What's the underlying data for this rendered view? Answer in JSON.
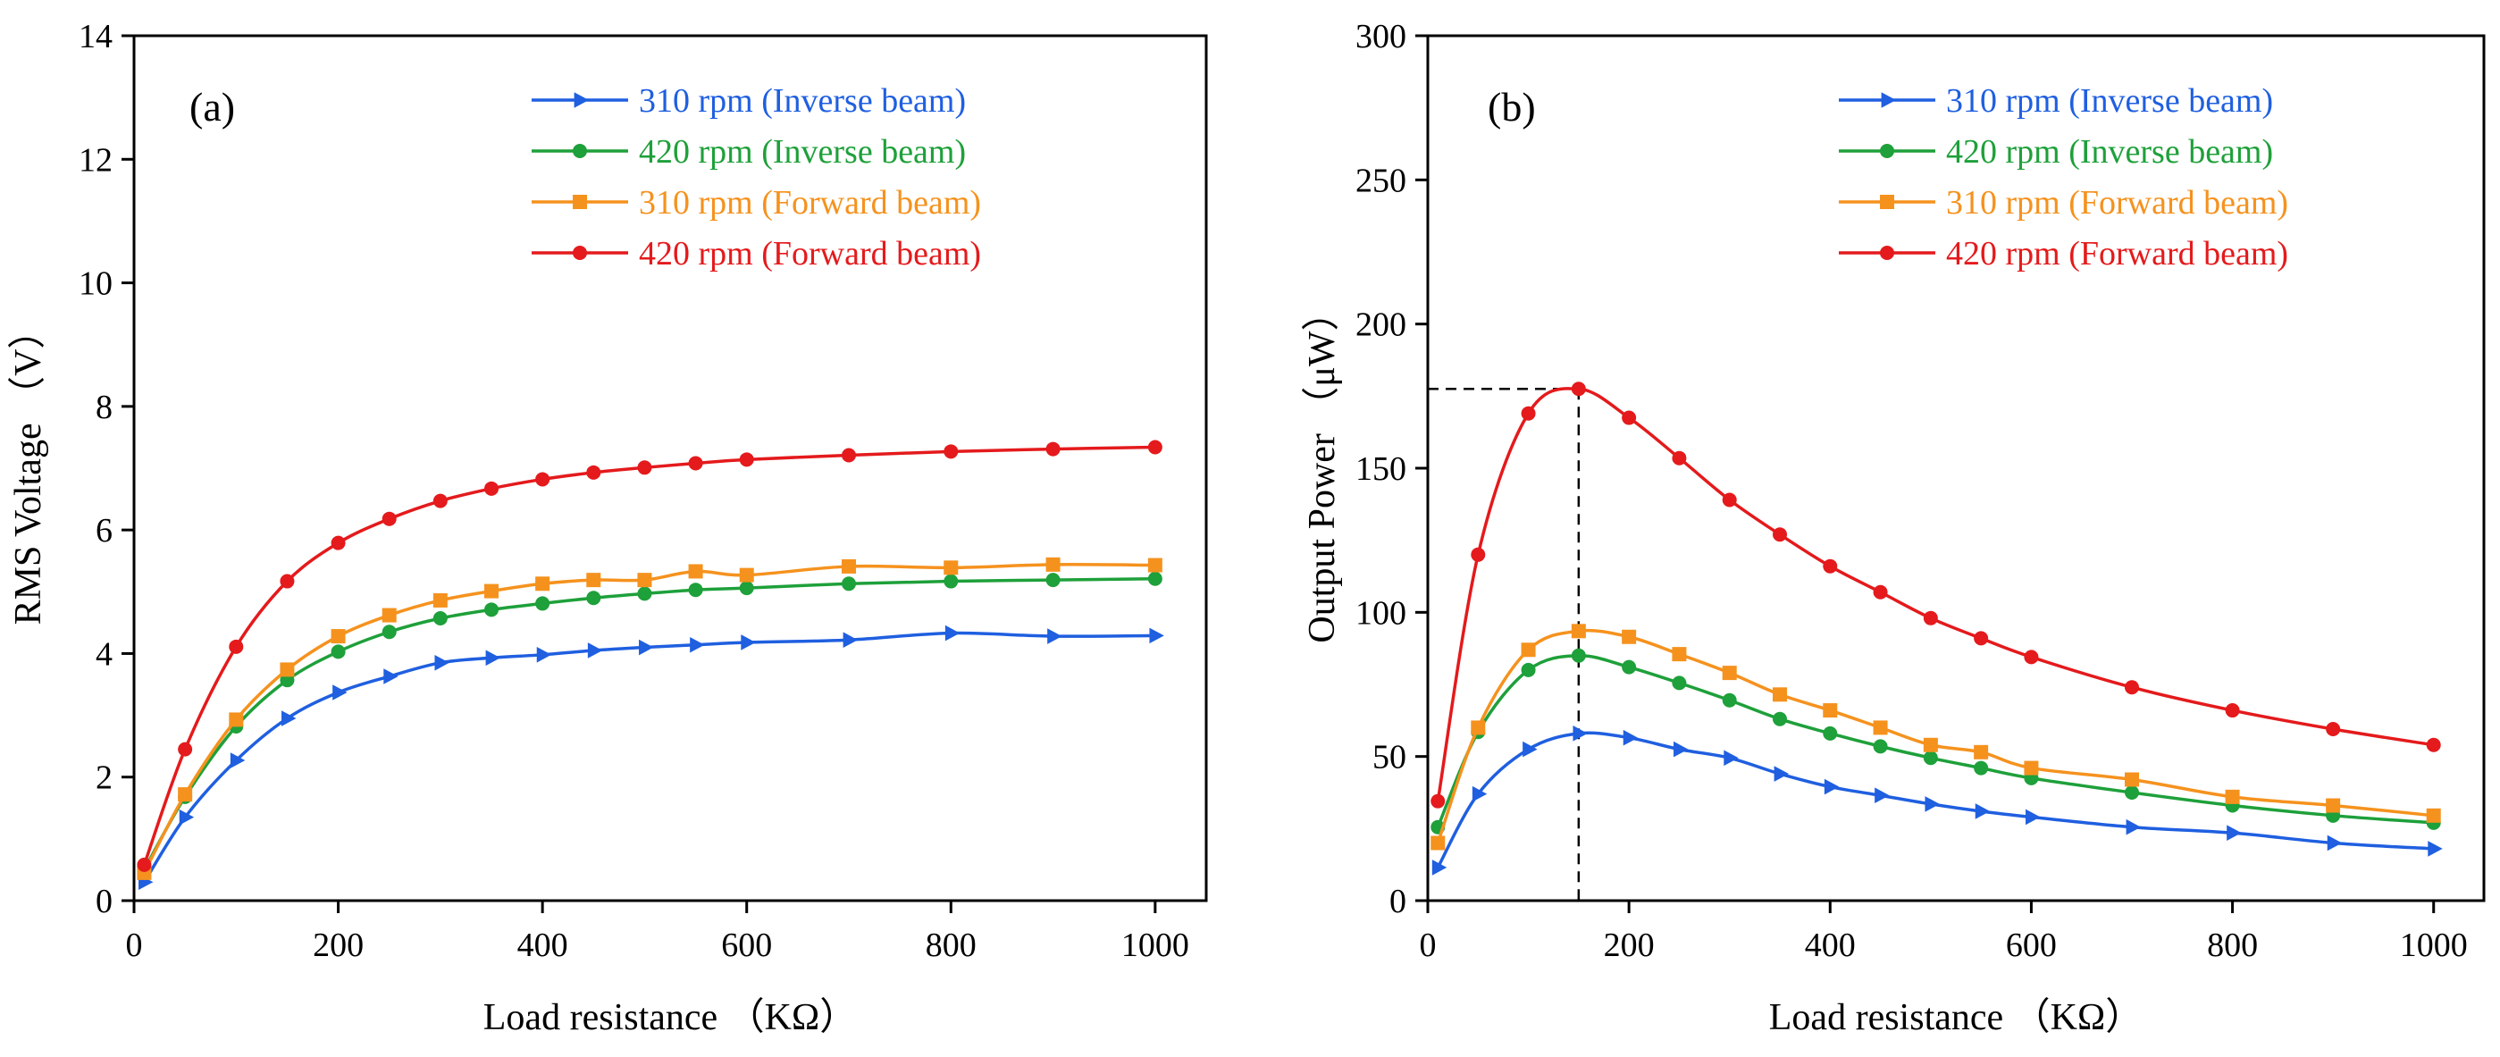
{
  "chart_data": [
    {
      "type": "line",
      "panel_label": "(a)",
      "xlabel": "Load resistance （KΩ）",
      "ylabel": "RMS Voltage （V）",
      "xlim": [
        0,
        1050
      ],
      "ylim": [
        0,
        14
      ],
      "xticks": [
        "0",
        "200",
        "400",
        "600",
        "800",
        "1000"
      ],
      "yticks": [
        "0",
        "2",
        "4",
        "6",
        "8",
        "10",
        "12",
        "14"
      ],
      "grid": false,
      "legend_position": "top-right",
      "x": [
        10,
        50,
        100,
        150,
        200,
        250,
        300,
        350,
        400,
        450,
        500,
        550,
        600,
        700,
        800,
        900,
        1000
      ],
      "series": [
        {
          "name": "310 rpm (Inverse beam)",
          "color": "#1f5fe0",
          "marker": "triangle-right",
          "values": [
            0.3,
            1.35,
            2.27,
            2.95,
            3.37,
            3.63,
            3.85,
            3.93,
            3.98,
            4.05,
            4.1,
            4.14,
            4.18,
            4.22,
            4.33,
            4.28,
            4.29
          ]
        },
        {
          "name": "420 rpm (Inverse beam)",
          "color": "#1ea03a",
          "marker": "circle",
          "values": [
            0.5,
            1.68,
            2.82,
            3.57,
            4.03,
            4.35,
            4.57,
            4.71,
            4.81,
            4.9,
            4.97,
            5.03,
            5.06,
            5.13,
            5.17,
            5.19,
            5.21
          ]
        },
        {
          "name": "310 rpm (Forward beam)",
          "color": "#f5921e",
          "marker": "square",
          "values": [
            0.45,
            1.72,
            2.93,
            3.74,
            4.28,
            4.62,
            4.86,
            5.01,
            5.13,
            5.19,
            5.19,
            5.33,
            5.27,
            5.41,
            5.39,
            5.44,
            5.43
          ]
        },
        {
          "name": "420 rpm (Forward beam)",
          "color": "#e41a1c",
          "marker": "circle",
          "values": [
            0.58,
            2.45,
            4.11,
            5.17,
            5.79,
            6.18,
            6.47,
            6.67,
            6.82,
            6.93,
            7.01,
            7.08,
            7.14,
            7.21,
            7.27,
            7.31,
            7.34
          ]
        }
      ]
    },
    {
      "type": "line",
      "panel_label": "(b)",
      "xlabel": "Load resistance （KΩ）",
      "ylabel": "Output Power （μW）",
      "xlim": [
        0,
        1050
      ],
      "ylim": [
        0,
        300
      ],
      "xticks": [
        "0",
        "200",
        "400",
        "600",
        "800",
        "1000"
      ],
      "yticks": [
        "0",
        "50",
        "100",
        "150",
        "200",
        "250",
        "300"
      ],
      "grid": false,
      "legend_position": "top-right",
      "annotation": {
        "x": 150,
        "y": 177.5,
        "style": "dashed-guide-to-peak"
      },
      "x": [
        10,
        50,
        100,
        150,
        200,
        250,
        300,
        350,
        400,
        450,
        500,
        550,
        600,
        700,
        800,
        900,
        1000
      ],
      "series": [
        {
          "name": "310 rpm (Inverse beam)",
          "color": "#1f5fe0",
          "marker": "triangle-right",
          "values": [
            11.5,
            37,
            52.5,
            58,
            56.5,
            52.5,
            49.5,
            44,
            39.5,
            36.5,
            33.5,
            31,
            29,
            25.5,
            23.5,
            20,
            18
          ]
        },
        {
          "name": "420 rpm (Inverse beam)",
          "color": "#1ea03a",
          "marker": "circle",
          "values": [
            25.5,
            58.5,
            80,
            85,
            81,
            75.5,
            69.5,
            63,
            58,
            53.5,
            49.5,
            46,
            42.5,
            37.5,
            33,
            29.5,
            27
          ]
        },
        {
          "name": "310 rpm (Forward beam)",
          "color": "#f5921e",
          "marker": "square",
          "values": [
            20,
            60,
            87,
            93.5,
            91.5,
            85.5,
            79,
            71.5,
            66,
            60,
            54,
            51.5,
            46,
            42,
            36,
            33,
            29.5
          ]
        },
        {
          "name": "420 rpm (Forward beam)",
          "color": "#e41a1c",
          "marker": "circle",
          "values": [
            34.5,
            120,
            169,
            177.5,
            167.5,
            153.5,
            139,
            127,
            116,
            107,
            98,
            91,
            84.5,
            74,
            66,
            59.5,
            54
          ]
        }
      ]
    }
  ]
}
